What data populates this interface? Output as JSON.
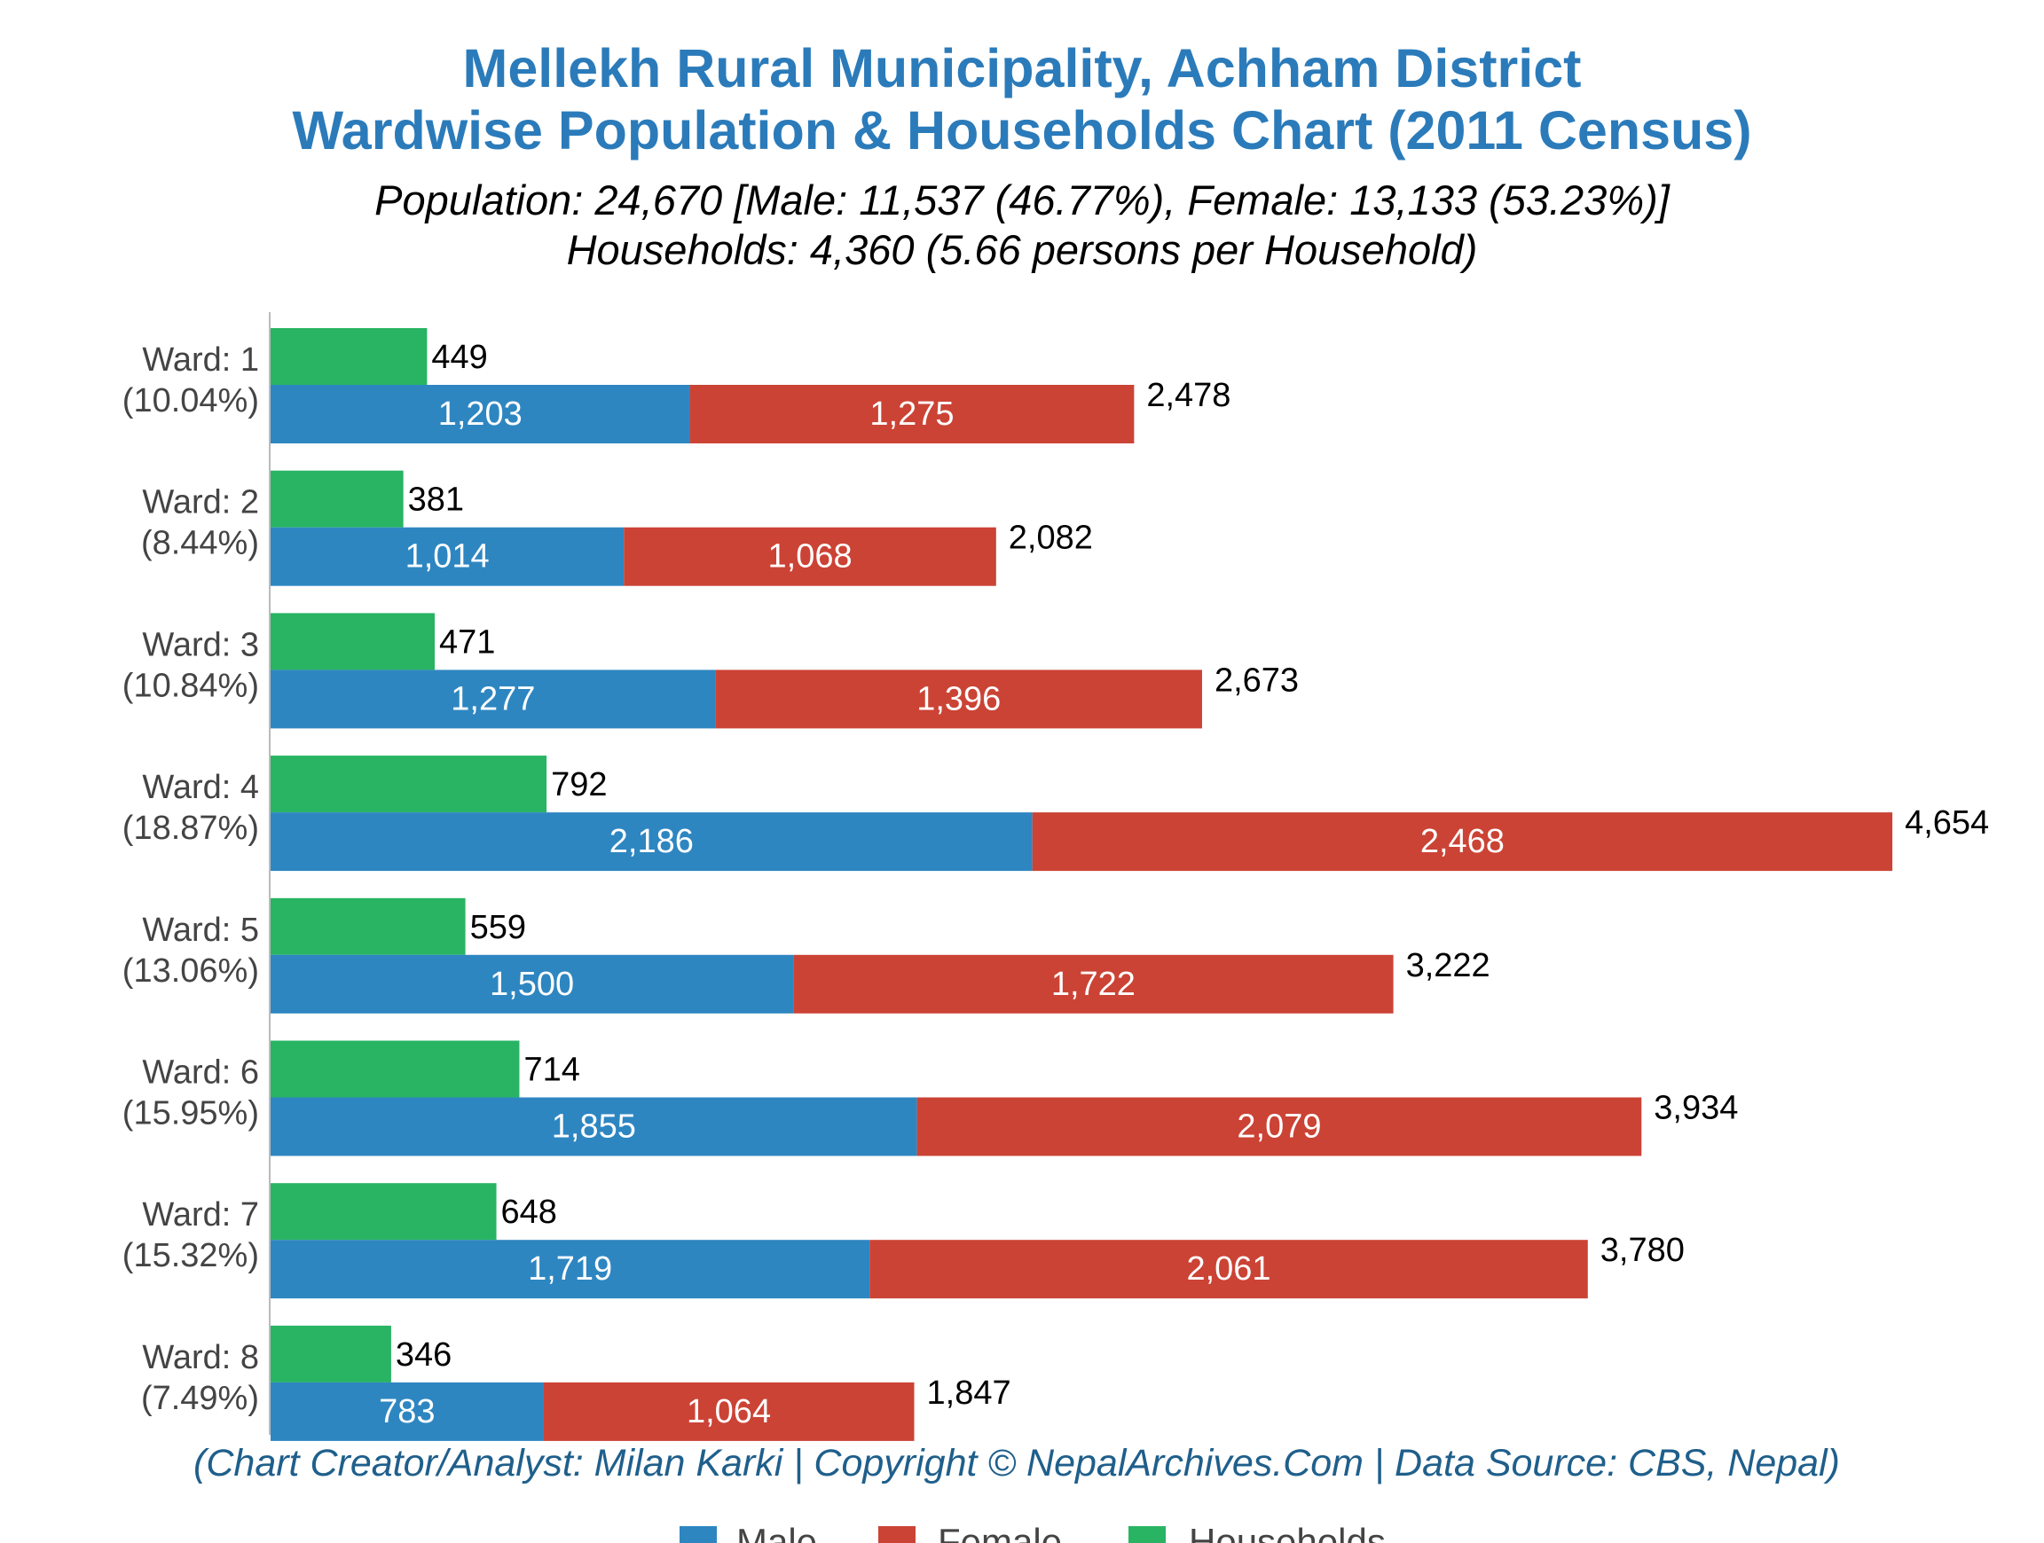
{
  "title_line1": "Mellekh Rural Municipality, Achham District",
  "title_line2": "Wardwise Population & Households Chart (2011 Census)",
  "subtitle_line1": "Population: 24,670 [Male: 11,537 (46.77%), Female: 13,133 (53.23%)]",
  "subtitle_line2": "Households: 4,360 (5.66 persons per Household)",
  "footer": "(Chart Creator/Analyst: Milan Karki | Copyright © NepalArchives.Com | Data Source: CBS, Nepal)",
  "colors": {
    "male": "#2e86c1",
    "female": "#cb4335",
    "households": "#28b463",
    "title": "#2b7bba"
  },
  "chart_data": {
    "type": "bar",
    "orientation": "horizontal",
    "categories": [
      "Ward: 1",
      "Ward: 2",
      "Ward: 3",
      "Ward: 4",
      "Ward: 5",
      "Ward: 6",
      "Ward: 7",
      "Ward: 8"
    ],
    "category_shares": [
      "(10.04%)",
      "(8.44%)",
      "(10.84%)",
      "(18.87%)",
      "(13.06%)",
      "(15.95%)",
      "(15.32%)",
      "(7.49%)"
    ],
    "series": [
      {
        "name": "Male",
        "values": [
          1203,
          1014,
          1277,
          2186,
          1500,
          1855,
          1719,
          783
        ],
        "labels": [
          "1,203",
          "1,014",
          "1,277",
          "2,186",
          "1,500",
          "1,855",
          "1,719",
          "783"
        ]
      },
      {
        "name": "Female",
        "values": [
          1275,
          1068,
          1396,
          2468,
          1722,
          2079,
          2061,
          1064
        ],
        "labels": [
          "1,275",
          "1,068",
          "1,396",
          "2,468",
          "1,722",
          "2,079",
          "2,061",
          "1,064"
        ]
      },
      {
        "name": "Households",
        "values": [
          449,
          381,
          471,
          792,
          559,
          714,
          648,
          346
        ],
        "labels": [
          "449",
          "381",
          "471",
          "792",
          "559",
          "714",
          "648",
          "346"
        ]
      }
    ],
    "totals": [
      2478,
      2082,
      2673,
      4654,
      3222,
      3934,
      3780,
      1847
    ],
    "total_labels": [
      "2,478",
      "2,082",
      "2,673",
      "4,654",
      "3,222",
      "3,934",
      "3,780",
      "1,847"
    ],
    "stacked": [
      "Male",
      "Female"
    ],
    "legend": [
      "Male",
      "Female",
      "Households"
    ],
    "legend_position": "bottom",
    "grid": false
  }
}
